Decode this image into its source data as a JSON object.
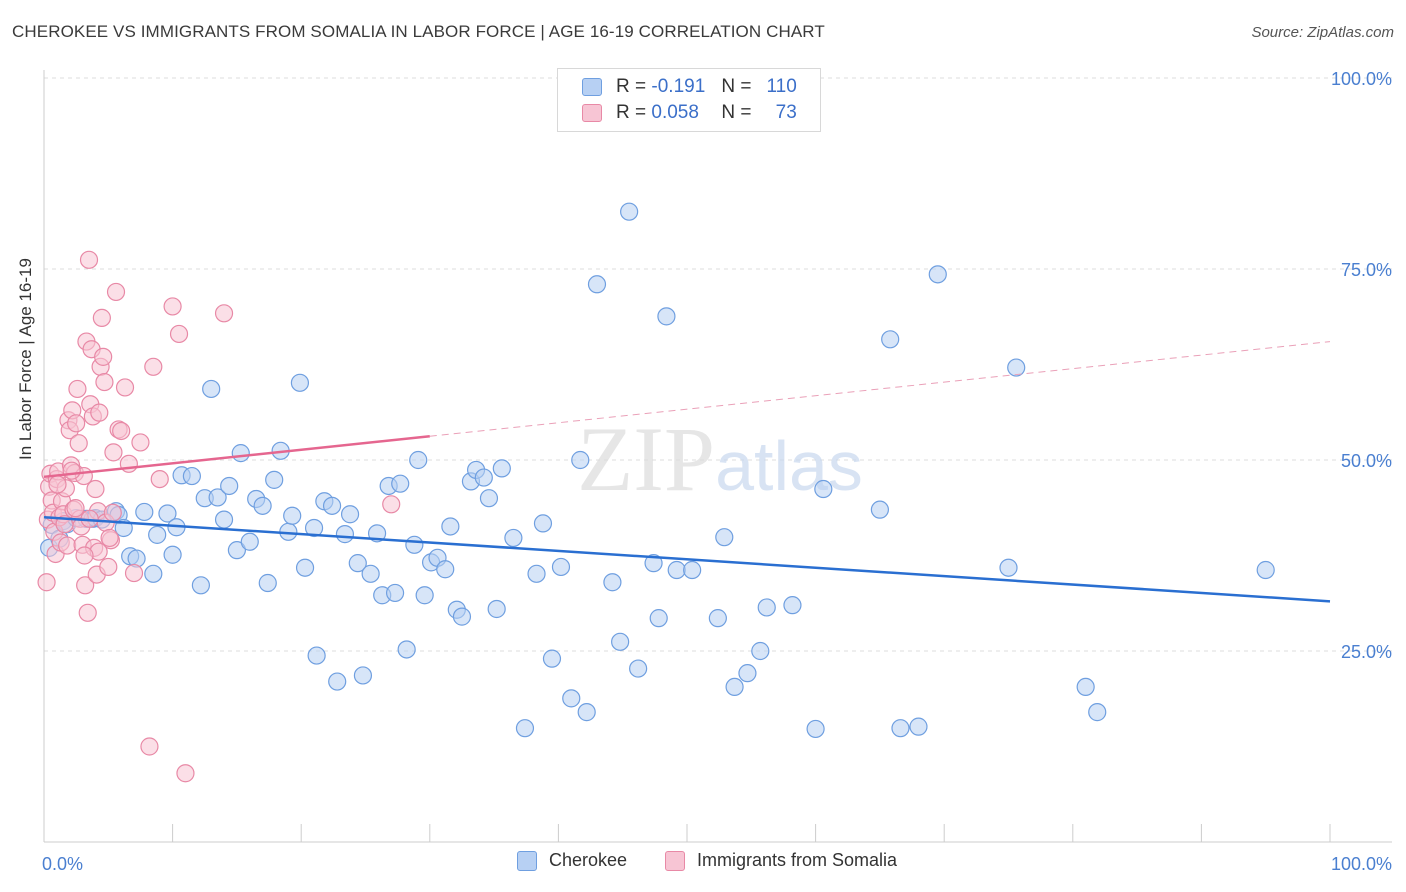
{
  "chart_data": {
    "type": "scatter",
    "title": "CHEROKEE VS IMMIGRANTS FROM SOMALIA IN LABOR FORCE | AGE 16-19 CORRELATION CHART",
    "source": "Source: ZipAtlas.com",
    "xlabel": "",
    "ylabel": "In Labor Force | Age 16-19",
    "xlim": [
      0,
      100
    ],
    "ylim": [
      0,
      100
    ],
    "x_tick_labels": {
      "left": "0.0%",
      "right": "100.0%"
    },
    "y_ticks": [
      {
        "value": 100,
        "label": "100.0%"
      },
      {
        "value": 75,
        "label": "75.0%"
      },
      {
        "value": 50,
        "label": "50.0%"
      },
      {
        "value": 25,
        "label": "25.0%"
      }
    ],
    "watermark": "ZIPatlas",
    "legend_stats": [
      {
        "r_label": "R =",
        "r": "-0.191",
        "n_label": "N =",
        "n": "110"
      },
      {
        "r_label": "R =",
        "r": "0.058",
        "n_label": "N =",
        "n": "73"
      }
    ],
    "series": [
      {
        "name": "Cherokee",
        "color": "#6f9fe0",
        "fill": "#b7d0f3",
        "trend": {
          "x0": 0,
          "y0": 42.5,
          "x1": 100,
          "y1": 31.5,
          "dashed_from": null
        },
        "points": [
          [
            0.4,
            38.5
          ],
          [
            0.6,
            41.5
          ],
          [
            1.2,
            39.7
          ],
          [
            1.5,
            42
          ],
          [
            1.8,
            41.6
          ],
          [
            2.5,
            42.4
          ],
          [
            3.3,
            42.3
          ],
          [
            3.8,
            42.3
          ],
          [
            4,
            42.4
          ],
          [
            4.5,
            42.2
          ],
          [
            5.6,
            43.3
          ],
          [
            5.8,
            42.8
          ],
          [
            6.2,
            41.1
          ],
          [
            6.7,
            37.4
          ],
          [
            7.2,
            37.1
          ],
          [
            7.8,
            43.2
          ],
          [
            8.5,
            35.1
          ],
          [
            8.8,
            40.2
          ],
          [
            9.6,
            43
          ],
          [
            10,
            37.6
          ],
          [
            10.3,
            41.2
          ],
          [
            10.7,
            48
          ],
          [
            11.5,
            47.9
          ],
          [
            12.2,
            33.6
          ],
          [
            12.5,
            45
          ],
          [
            13,
            59.3
          ],
          [
            13.5,
            45.1
          ],
          [
            14,
            42.2
          ],
          [
            14.4,
            46.6
          ],
          [
            15,
            38.2
          ],
          [
            15.3,
            50.9
          ],
          [
            16,
            39.3
          ],
          [
            16.5,
            44.9
          ],
          [
            17,
            44
          ],
          [
            17.4,
            33.9
          ],
          [
            17.9,
            47.4
          ],
          [
            18.4,
            51.2
          ],
          [
            19,
            40.6
          ],
          [
            19.3,
            42.7
          ],
          [
            19.9,
            60.1
          ],
          [
            20.3,
            35.9
          ],
          [
            21,
            41.1
          ],
          [
            21.2,
            24.4
          ],
          [
            21.8,
            44.6
          ],
          [
            22.4,
            44
          ],
          [
            22.8,
            21
          ],
          [
            23.4,
            40.3
          ],
          [
            23.8,
            42.9
          ],
          [
            24.4,
            36.5
          ],
          [
            24.8,
            21.8
          ],
          [
            25.4,
            35.1
          ],
          [
            25.9,
            40.4
          ],
          [
            26.3,
            32.3
          ],
          [
            26.8,
            46.6
          ],
          [
            27.3,
            32.6
          ],
          [
            27.7,
            46.9
          ],
          [
            28.2,
            25.2
          ],
          [
            28.8,
            38.9
          ],
          [
            29.1,
            50
          ],
          [
            29.6,
            32.3
          ],
          [
            30.1,
            36.6
          ],
          [
            30.6,
            37.2
          ],
          [
            31.2,
            35.7
          ],
          [
            31.6,
            41.3
          ],
          [
            32.1,
            30.4
          ],
          [
            32.5,
            29.5
          ],
          [
            33.2,
            47.2
          ],
          [
            33.6,
            48.7
          ],
          [
            34.2,
            47.7
          ],
          [
            34.6,
            45
          ],
          [
            35.2,
            30.5
          ],
          [
            35.6,
            48.9
          ],
          [
            36.5,
            39.8
          ],
          [
            37.4,
            14.9
          ],
          [
            38.3,
            35.1
          ],
          [
            38.8,
            41.7
          ],
          [
            39.5,
            24
          ],
          [
            40.2,
            36
          ],
          [
            41,
            18.8
          ],
          [
            41.7,
            50
          ],
          [
            42.2,
            17
          ],
          [
            43,
            73
          ],
          [
            44.2,
            34
          ],
          [
            44.8,
            26.2
          ],
          [
            45.5,
            82.5
          ],
          [
            46.2,
            22.7
          ],
          [
            47.4,
            36.5
          ],
          [
            47.8,
            29.3
          ],
          [
            48.4,
            68.8
          ],
          [
            49.2,
            35.6
          ],
          [
            50.4,
            35.6
          ],
          [
            52.4,
            29.3
          ],
          [
            52.9,
            39.9
          ],
          [
            53.7,
            20.3
          ],
          [
            54.7,
            22.1
          ],
          [
            55.7,
            25
          ],
          [
            56.2,
            30.7
          ],
          [
            58.2,
            31
          ],
          [
            60,
            14.8
          ],
          [
            60.6,
            46.2
          ],
          [
            65,
            43.5
          ],
          [
            65.8,
            65.8
          ],
          [
            66.6,
            14.9
          ],
          [
            68,
            15.1
          ],
          [
            69.5,
            74.3
          ],
          [
            75,
            35.9
          ],
          [
            75.6,
            62.1
          ],
          [
            81,
            20.3
          ],
          [
            81.9,
            17
          ],
          [
            95,
            35.6
          ]
        ]
      },
      {
        "name": "Immigrants from Somalia",
        "color": "#e889a6",
        "fill": "#f7c5d4",
        "trend": {
          "x0": 0,
          "y0": 47.8,
          "x1": 100,
          "y1": 65.5,
          "solid_until": 30
        },
        "points": [
          [
            0.2,
            34
          ],
          [
            0.3,
            42.2
          ],
          [
            0.4,
            46.5
          ],
          [
            0.5,
            48.2
          ],
          [
            0.6,
            44.7
          ],
          [
            0.7,
            43.1
          ],
          [
            0.8,
            40.6
          ],
          [
            0.9,
            37.7
          ],
          [
            1,
            47.5
          ],
          [
            1.1,
            48.5
          ],
          [
            1.2,
            42.5
          ],
          [
            1.3,
            39.2
          ],
          [
            1.4,
            44.6
          ],
          [
            1.5,
            42.9
          ],
          [
            1.6,
            41.6
          ],
          [
            1.7,
            46.3
          ],
          [
            1.8,
            38.8
          ],
          [
            1.9,
            55.2
          ],
          [
            2,
            53.9
          ],
          [
            2.1,
            49.3
          ],
          [
            2.2,
            56.5
          ],
          [
            2.3,
            43.5
          ],
          [
            2.4,
            48.3
          ],
          [
            2.5,
            54.8
          ],
          [
            2.6,
            59.3
          ],
          [
            2.7,
            52.2
          ],
          [
            2.8,
            42.3
          ],
          [
            2.9,
            41.3
          ],
          [
            3,
            38.9
          ],
          [
            3.1,
            47.9
          ],
          [
            3.2,
            33.6
          ],
          [
            3.3,
            65.5
          ],
          [
            3.4,
            30
          ],
          [
            3.5,
            76.2
          ],
          [
            3.6,
            57.3
          ],
          [
            3.7,
            64.5
          ],
          [
            3.8,
            55.7
          ],
          [
            3.9,
            38.5
          ],
          [
            4,
            46.2
          ],
          [
            4.1,
            35
          ],
          [
            4.2,
            43.3
          ],
          [
            4.3,
            56.2
          ],
          [
            4.4,
            62.2
          ],
          [
            4.5,
            68.6
          ],
          [
            4.6,
            63.5
          ],
          [
            4.7,
            60.2
          ],
          [
            4.8,
            41.8
          ],
          [
            5,
            36
          ],
          [
            5.2,
            39.5
          ],
          [
            5.4,
            51
          ],
          [
            5.6,
            72
          ],
          [
            5.8,
            54
          ],
          [
            6,
            53.8
          ],
          [
            6.3,
            59.5
          ],
          [
            6.6,
            49.5
          ],
          [
            7,
            35.2
          ],
          [
            7.5,
            52.3
          ],
          [
            8.2,
            12.5
          ],
          [
            8.5,
            62.2
          ],
          [
            9,
            47.5
          ],
          [
            10,
            70.1
          ],
          [
            10.5,
            66.5
          ],
          [
            11,
            9
          ],
          [
            14,
            69.2
          ],
          [
            27,
            44.2
          ],
          [
            5.1,
            39.8
          ],
          [
            3.55,
            42.3
          ],
          [
            2.45,
            43.7
          ],
          [
            1.05,
            46.8
          ],
          [
            4.25,
            38
          ],
          [
            5.35,
            43.1
          ],
          [
            2.15,
            48.6
          ],
          [
            3.15,
            37.5
          ]
        ]
      }
    ]
  }
}
